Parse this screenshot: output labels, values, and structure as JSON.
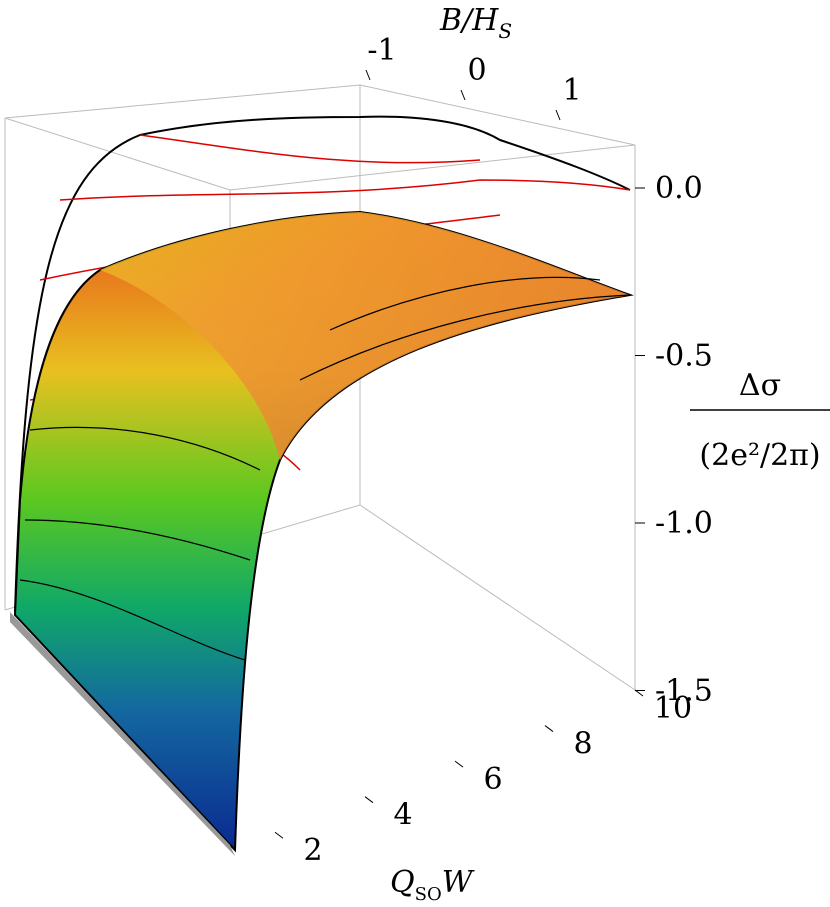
{
  "chart_data": {
    "type": "surface3d",
    "x_label": {
      "main": "Q",
      "sub": "SO",
      "tail": "W"
    },
    "y_label": {
      "main": "B/H",
      "sub": "S"
    },
    "z_label": {
      "numerator": "Δσ",
      "denominator": "(2e²/2π)"
    },
    "xlim": [
      1,
      10
    ],
    "xticks": [
      2,
      4,
      6,
      8,
      10
    ],
    "ylim": [
      -1.5,
      1.5
    ],
    "yticks": [
      -1,
      0,
      1
    ],
    "zlim": [
      -1.5,
      0.1
    ],
    "zticks": [
      {
        "value": 0,
        "label": "0.0"
      },
      -0.5,
      {
        "value": -1,
        "label": "-1.0"
      },
      -1.5
    ]
  }
}
